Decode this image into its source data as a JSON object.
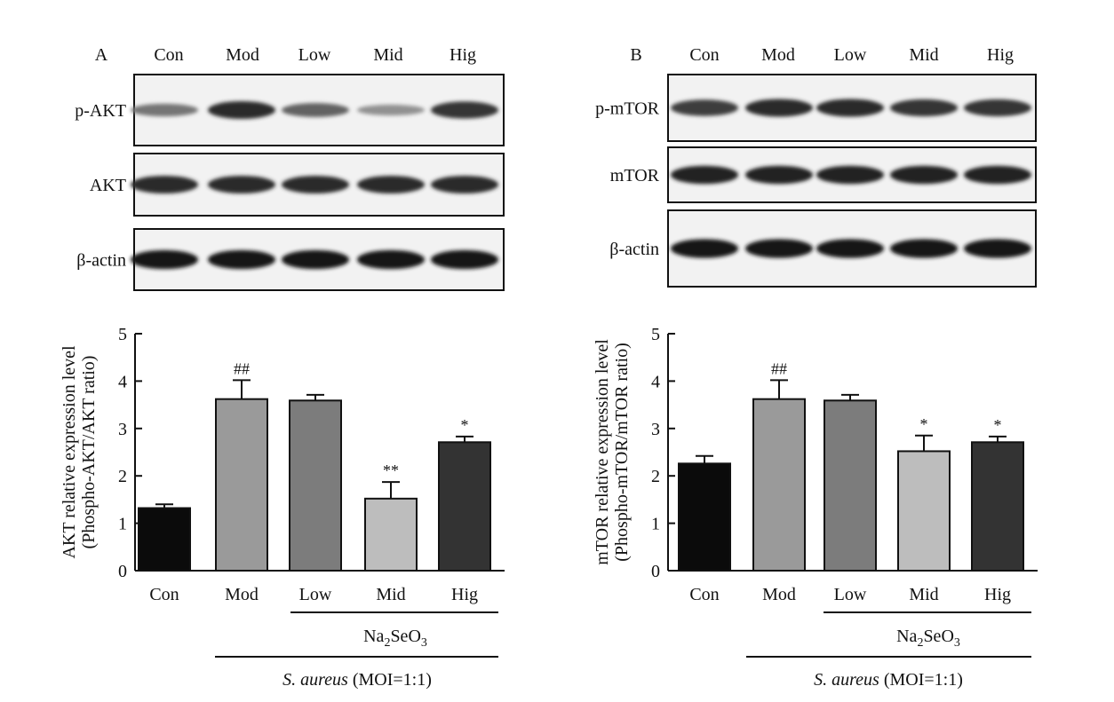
{
  "panels": [
    {
      "letter": "A",
      "lanes": [
        "Con",
        "Mod",
        "Low",
        "Mid",
        "Hig"
      ],
      "blots": [
        {
          "label": "p-AKT",
          "band_intensity": [
            0.45,
            0.85,
            0.55,
            0.3,
            0.8
          ]
        },
        {
          "label": "AKT",
          "band_intensity": [
            0.85,
            0.85,
            0.85,
            0.85,
            0.85
          ]
        },
        {
          "label": "β-actin",
          "band_intensity": [
            0.95,
            0.95,
            0.95,
            0.95,
            0.95
          ]
        }
      ],
      "treatment_label": "Na",
      "treatment_sub1": "2",
      "treatment_mid": "SeO",
      "treatment_sub2": "3",
      "infection_italic": "S. aureus",
      "infection_rest": " (MOI=1:1)"
    },
    {
      "letter": "B",
      "lanes": [
        "Con",
        "Mod",
        "Low",
        "Mid",
        "Hig"
      ],
      "blots": [
        {
          "label": "p-mTOR",
          "band_intensity": [
            0.75,
            0.85,
            0.85,
            0.8,
            0.8
          ]
        },
        {
          "label": "mTOR",
          "band_intensity": [
            0.9,
            0.9,
            0.9,
            0.9,
            0.9
          ]
        },
        {
          "label": "β-actin",
          "band_intensity": [
            0.95,
            0.95,
            0.95,
            0.95,
            0.95
          ]
        }
      ],
      "treatment_label": "Na",
      "treatment_sub1": "2",
      "treatment_mid": "SeO",
      "treatment_sub2": "3",
      "infection_italic": "S. aureus",
      "infection_rest": " (MOI=1:1)"
    }
  ],
  "chart_data": [
    {
      "type": "bar",
      "categories": [
        "Con",
        "Mod",
        "Low",
        "Mid",
        "Hig"
      ],
      "values": [
        1.32,
        3.62,
        3.59,
        1.52,
        2.71
      ],
      "errors": [
        0.08,
        0.4,
        0.12,
        0.35,
        0.12
      ],
      "annotations": [
        "",
        "##",
        "",
        "**",
        "*"
      ],
      "colors": [
        "#0b0b0b",
        "#9a9a9a",
        "#7c7c7c",
        "#bdbdbd",
        "#333333"
      ],
      "ylabel_line1": "AKT relative expression level",
      "ylabel_line2": "(Phospho-AKT/AKT ratio)",
      "ylim": [
        0,
        5
      ],
      "yticks": [
        0,
        1,
        2,
        3,
        4,
        5
      ]
    },
    {
      "type": "bar",
      "categories": [
        "Con",
        "Mod",
        "Low",
        "Mid",
        "Hig"
      ],
      "values": [
        2.26,
        3.62,
        3.59,
        2.52,
        2.71
      ],
      "errors": [
        0.16,
        0.4,
        0.12,
        0.33,
        0.12
      ],
      "annotations": [
        "",
        "##",
        "",
        "*",
        "*"
      ],
      "colors": [
        "#0b0b0b",
        "#9a9a9a",
        "#7c7c7c",
        "#bdbdbd",
        "#333333"
      ],
      "ylabel_line1": "mTOR relative expression level",
      "ylabel_line2": "(Phospho-mTOR/mTOR ratio)",
      "ylim": [
        0,
        5
      ],
      "yticks": [
        0,
        1,
        2,
        3,
        4,
        5
      ]
    }
  ]
}
